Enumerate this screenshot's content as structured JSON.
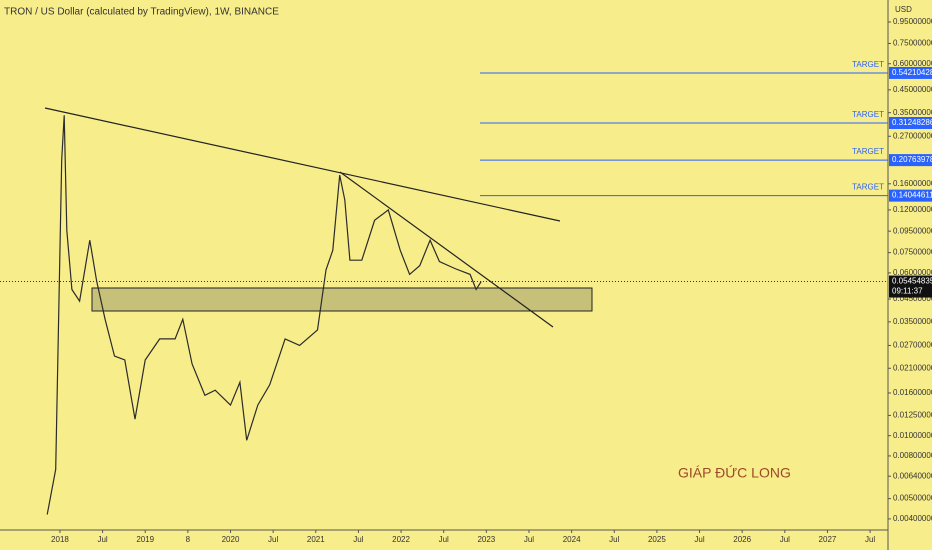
{
  "chart_data": {
    "type": "line",
    "title": "TRON / US Dollar (calculated by TradingView), 1W, BINANCE",
    "y_axis_label": "USD",
    "log_scale": true,
    "color": "#2b2b2b",
    "x": [
      2017.85,
      2017.95,
      2018.02,
      2018.05,
      2018.08,
      2018.14,
      2018.23,
      2018.35,
      2018.43,
      2018.53,
      2018.64,
      2018.76,
      2018.88,
      2019.0,
      2019.17,
      2019.35,
      2019.44,
      2019.55,
      2019.7,
      2019.82,
      2020.0,
      2020.11,
      2020.19,
      2020.32,
      2020.46,
      2020.64,
      2020.81,
      2021.02,
      2021.12,
      2021.2,
      2021.28,
      2021.34,
      2021.4,
      2021.54,
      2021.69,
      2021.85,
      2021.99,
      2022.1,
      2022.22,
      2022.34,
      2022.45,
      2022.63,
      2022.81,
      2022.88,
      2022.94
    ],
    "values": [
      0.0042,
      0.0069,
      0.208,
      0.34,
      0.096,
      0.05,
      0.044,
      0.086,
      0.055,
      0.036,
      0.024,
      0.023,
      0.012,
      0.023,
      0.029,
      0.029,
      0.036,
      0.022,
      0.0156,
      0.0165,
      0.014,
      0.018,
      0.0095,
      0.014,
      0.0175,
      0.029,
      0.027,
      0.032,
      0.062,
      0.077,
      0.176,
      0.134,
      0.069,
      0.069,
      0.107,
      0.12,
      0.077,
      0.059,
      0.065,
      0.086,
      0.068,
      0.063,
      0.059,
      0.05,
      0.0545
    ],
    "xlim": [
      2017.297,
      2027.71
    ],
    "ylim": [
      0.00354,
      1.21
    ],
    "xticks": [
      2018,
      {
        "value": 2018.5,
        "label": "Jul"
      },
      2019,
      {
        "value": 2019.5,
        "label": "8"
      },
      2020,
      {
        "value": 2020.5,
        "label": "Jul"
      },
      2021,
      {
        "value": 2021.5,
        "label": "Jul"
      },
      2022,
      {
        "value": 2022.5,
        "label": "Jul"
      },
      2023,
      {
        "value": 2023.5,
        "label": "Jul"
      },
      2024,
      {
        "value": 2024.5,
        "label": "Jul"
      },
      2025,
      {
        "value": 2025.5,
        "label": "Jul"
      },
      2026,
      {
        "value": 2026.5,
        "label": "Jul"
      },
      2027,
      {
        "value": 2027.5,
        "label": "Jul"
      }
    ],
    "yticks": [
      {
        "value": 0.95,
        "label": "0.95000000"
      },
      {
        "value": 0.75,
        "label": "0.75000000"
      },
      {
        "value": 0.6,
        "label": "0.60000000"
      },
      {
        "value": 0.45,
        "label": "0.45000000"
      },
      {
        "value": 0.35,
        "label": "0.35000000"
      },
      {
        "value": 0.27,
        "label": "0.27000000"
      },
      {
        "value": 0.16,
        "label": "0.16000000"
      },
      {
        "value": 0.12,
        "label": "0.12000000"
      },
      {
        "value": 0.095,
        "label": "0.09500000"
      },
      {
        "value": 0.075,
        "label": "0.07500000"
      },
      {
        "value": 0.06,
        "label": "0.06000000"
      },
      {
        "value": 0.045,
        "label": "0.04500000"
      },
      {
        "value": 0.035,
        "label": "0.03500000"
      },
      {
        "value": 0.027,
        "label": "0.02700000"
      },
      {
        "value": 0.021,
        "label": "0.02100000"
      },
      {
        "value": 0.016,
        "label": "0.01600000"
      },
      {
        "value": 0.0125,
        "label": "0.01250000"
      },
      {
        "value": 0.01,
        "label": "0.01000000"
      },
      {
        "value": 0.008,
        "label": "0.00800000"
      },
      {
        "value": 0.0064,
        "label": "0.00640000"
      },
      {
        "value": 0.005,
        "label": "0.00500000"
      },
      {
        "value": 0.004,
        "label": "0.00400000"
      }
    ],
    "targets": [
      {
        "label": "TARGET",
        "value": 0.54210428
      },
      {
        "label": "TARGET",
        "value": 0.31248286
      },
      {
        "label": "TARGET",
        "value": 0.20763978
      },
      {
        "label": "TARGET",
        "value": 0.14044611
      }
    ],
    "target_color": "#2962ff",
    "current_price": 0.05454835,
    "countdown": "09:11:37",
    "watermark": "GIÁP ĐỨC LONG"
  }
}
